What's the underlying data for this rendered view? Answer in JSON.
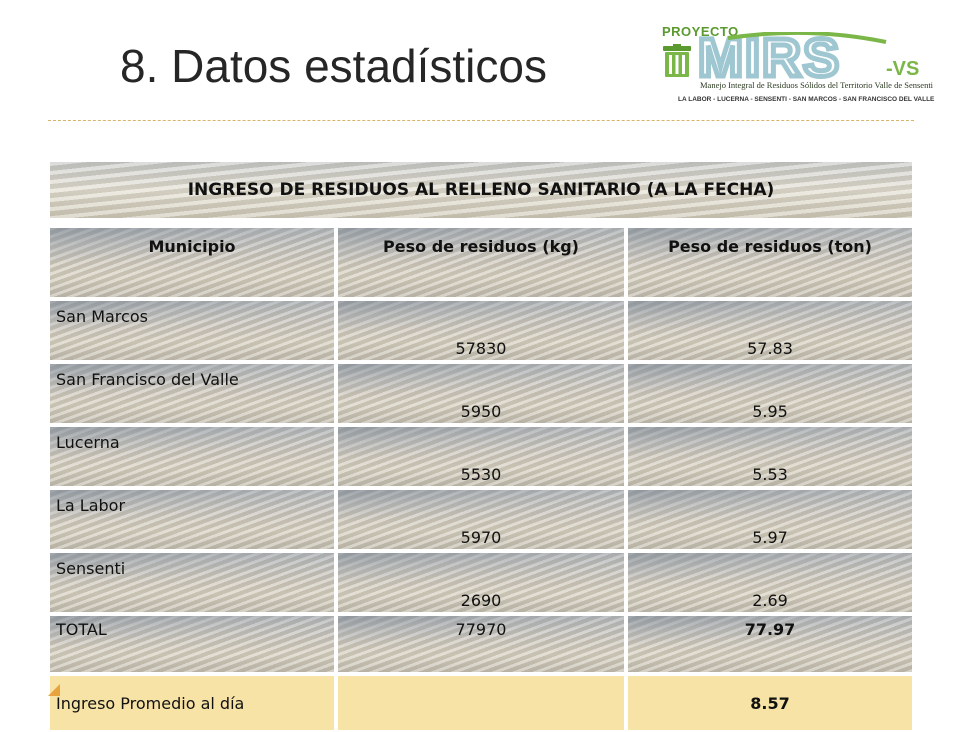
{
  "slide": {
    "title": "8. Datos estadísticos"
  },
  "logo": {
    "kicker": "PROYECTO",
    "mark": "MIRS",
    "suffix": "-VS",
    "tagline": "Manejo Integral de Residuos Sólidos del Territorio Valle de Sensenti",
    "places": "LA LABOR - LUCERNA - SENSENTI - SAN MARCOS - SAN FRANCISCO DEL VALLE",
    "colors": {
      "green": "#7ab648",
      "dark_green": "#5a9a2e",
      "teal": "#9fc7d2"
    }
  },
  "table": {
    "caption": "INGRESO DE RESIDUOS AL RELLENO SANITARIO (A LA FECHA)",
    "columns": [
      "Municipio",
      "Peso de residuos (kg)",
      "Peso de residuos (ton)"
    ],
    "rows": [
      {
        "municipio": "San Marcos",
        "kg": "57830",
        "ton": "57.83"
      },
      {
        "municipio": "San Francisco del Valle",
        "kg": "5950",
        "ton": "5.95"
      },
      {
        "municipio": "Lucerna",
        "kg": "5530",
        "ton": "5.53"
      },
      {
        "municipio": "La Labor",
        "kg": "5970",
        "ton": "5.97"
      },
      {
        "municipio": "Sensenti",
        "kg": "2690",
        "ton": "2.69"
      }
    ],
    "total": {
      "label": "TOTAL",
      "kg": "77970",
      "ton": "77.97"
    },
    "average": {
      "label": "Ingreso Promedio al  día",
      "kg": "",
      "ton": "8.57"
    }
  },
  "colors": {
    "highlight_row": "#f8e3a6",
    "divider": "#d8b46a",
    "bullet_arrow": "#e8a33c"
  }
}
